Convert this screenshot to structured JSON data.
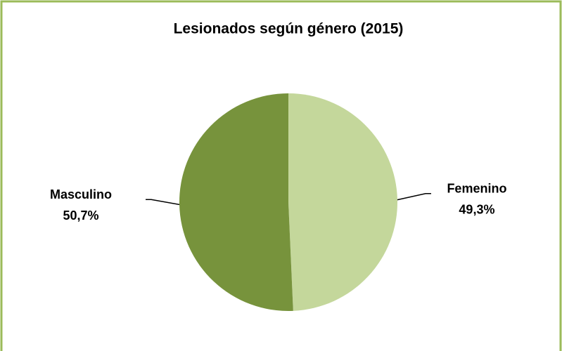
{
  "chart_data": {
    "type": "pie",
    "title": "Lesionados según género (2015)",
    "categories": [
      "Femenino",
      "Masculino"
    ],
    "values": [
      49.3,
      50.7
    ],
    "value_labels": [
      "49,3%",
      "50,7%"
    ],
    "colors": [
      "#c4d79b",
      "#77933c"
    ]
  }
}
